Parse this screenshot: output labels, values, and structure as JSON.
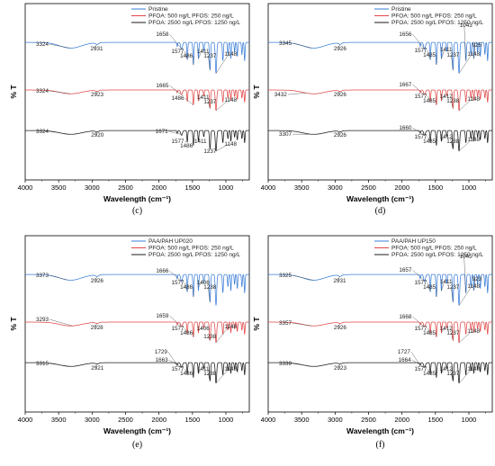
{
  "figure": {
    "xlabel": "Wavelength (cm⁻¹)",
    "ylabel": "% T",
    "xticks": [
      4000,
      3500,
      3000,
      2500,
      2000,
      1500,
      1000
    ],
    "xlim": [
      4000,
      650
    ],
    "colors": {
      "blue": "#3a7dd8",
      "red": "#e04848",
      "black": "#1a1a1a"
    }
  },
  "chart_data": [
    {
      "type": "line",
      "panel": "top-left",
      "caption": "(c)",
      "series": [
        {
          "name": "Pristine",
          "color": "blue",
          "labels": [
            {
              "x": 3324,
              "text": "3324",
              "lx": 3745,
              "ly": 4
            },
            {
              "x": 2931,
              "text": "2931",
              "lx": 2931,
              "ly": 9
            },
            {
              "x": 1658,
              "text": "1658",
              "lx": 1950,
              "ly": -7
            },
            {
              "x": 1577,
              "text": "1577",
              "lx": 1720,
              "ly": 12
            },
            {
              "x": 1486,
              "text": "1486",
              "lx": 1590,
              "ly": 17
            },
            {
              "x": 1411,
              "text": "1411",
              "lx": 1340,
              "ly": 12
            },
            {
              "x": 1237,
              "text": "1237",
              "lx": 1237,
              "ly": 17
            },
            {
              "x": 1148,
              "text": "1148",
              "lx": 930,
              "ly": 15
            }
          ]
        },
        {
          "name": "PFOA: 500 ng/L PFOS: 250 ng/L",
          "color": "red",
          "labels": [
            {
              "x": 3324,
              "text": "3324",
              "lx": 3745,
              "ly": 3
            },
            {
              "x": 2923,
              "text": "2923",
              "lx": 2923,
              "ly": 7
            },
            {
              "x": 1665,
              "text": "1665",
              "lx": 1950,
              "ly": -3
            },
            {
              "x": 1486,
              "text": "1486",
              "lx": 1720,
              "ly": 11
            },
            {
              "x": 1411,
              "text": "1411",
              "lx": 1340,
              "ly": 10
            },
            {
              "x": 1237,
              "text": "1237",
              "lx": 1237,
              "ly": 15
            },
            {
              "x": 1148,
              "text": "1148",
              "lx": 930,
              "ly": 13
            }
          ]
        },
        {
          "name": "PFOA: 2500 ng/L PFOS: 1250 ng/L",
          "color": "black",
          "labels": [
            {
              "x": 3324,
              "text": "3324",
              "lx": 3745,
              "ly": 3
            },
            {
              "x": 2920,
              "text": "2920",
              "lx": 2920,
              "ly": 7
            },
            {
              "x": 1671,
              "text": "1671",
              "lx": 1960,
              "ly": 3
            },
            {
              "x": 1577,
              "text": "1577",
              "lx": 1720,
              "ly": 14
            },
            {
              "x": 1486,
              "text": "1486",
              "lx": 1590,
              "ly": 19
            },
            {
              "x": 1411,
              "text": "1411",
              "lx": 1380,
              "ly": 14
            },
            {
              "x": 1237,
              "text": "1237",
              "lx": 1237,
              "ly": 25
            },
            {
              "x": 1148,
              "text": "1148",
              "lx": 930,
              "ly": 17
            }
          ]
        }
      ]
    },
    {
      "type": "line",
      "panel": "top-right",
      "caption": "(d)",
      "series": [
        {
          "name": "Pristine",
          "color": "blue",
          "labels": [
            {
              "x": 3345,
              "text": "3345",
              "lx": 3745,
              "ly": 3
            },
            {
              "x": 2926,
              "text": "2926",
              "lx": 2926,
              "ly": 9
            },
            {
              "x": 1656,
              "text": "1656",
              "lx": 1950,
              "ly": -7
            },
            {
              "x": 1577,
              "text": "1577",
              "lx": 1720,
              "ly": 11
            },
            {
              "x": 1485,
              "text": "1485",
              "lx": 1590,
              "ly": 16
            },
            {
              "x": 1411,
              "text": "1411",
              "lx": 1340,
              "ly": 10
            },
            {
              "x": 1237,
              "text": "1237",
              "lx": 1237,
              "ly": 16
            },
            {
              "x": 1043,
              "text": "1043",
              "lx": 1043,
              "ly": -17
            },
            {
              "x": 925,
              "text": "925",
              "lx": 880,
              "ly": 5
            },
            {
              "x": 1148,
              "text": "1148",
              "lx": 930,
              "ly": 15
            }
          ]
        },
        {
          "name": "PFOA: 500 ng/L PFOS: 250 ng/L",
          "color": "red",
          "labels": [
            {
              "x": 3432,
              "text": "3432",
              "lx": 3815,
              "ly": 7
            },
            {
              "x": 2926,
              "text": "2926",
              "lx": 2926,
              "ly": 7
            },
            {
              "x": 1667,
              "text": "1667",
              "lx": 1950,
              "ly": -4
            },
            {
              "x": 1577,
              "text": "1577",
              "lx": 1720,
              "ly": 9
            },
            {
              "x": 1485,
              "text": "1485",
              "lx": 1590,
              "ly": 14
            },
            {
              "x": 1412,
              "text": "1412",
              "lx": 1340,
              "ly": 9
            },
            {
              "x": 1238,
              "text": "1238",
              "lx": 1238,
              "ly": 14
            },
            {
              "x": 1148,
              "text": "1148",
              "lx": 930,
              "ly": 12
            }
          ]
        },
        {
          "name": "PFOA: 2500 ng/L PFOS: 1250 ng/L",
          "color": "black",
          "labels": [
            {
              "x": 3307,
              "text": "3307",
              "lx": 3745,
              "ly": 6
            },
            {
              "x": 2926,
              "text": "2926",
              "lx": 2926,
              "ly": 7
            },
            {
              "x": 1660,
              "text": "1660",
              "lx": 1950,
              "ly": -1
            },
            {
              "x": 1577,
              "text": "1577",
              "lx": 1720,
              "ly": 9
            },
            {
              "x": 1485,
              "text": "1485",
              "lx": 1590,
              "ly": 14
            },
            {
              "x": 1412,
              "text": "1412",
              "lx": 1340,
              "ly": 9
            },
            {
              "x": 1238,
              "text": "1238",
              "lx": 1238,
              "ly": 14
            },
            {
              "x": 1148,
              "text": "1148",
              "lx": 930,
              "ly": 12
            }
          ]
        }
      ]
    },
    {
      "type": "line",
      "panel": "bottom-left",
      "caption": "(e)",
      "series": [
        {
          "name": "PAA/PAH UP020",
          "color": "blue",
          "labels": [
            {
              "x": 3373,
              "text": "3373",
              "lx": 3745,
              "ly": 3
            },
            {
              "x": 2926,
              "text": "2926",
              "lx": 2926,
              "ly": 9
            },
            {
              "x": 1666,
              "text": "1666",
              "lx": 1950,
              "ly": -2
            },
            {
              "x": 1577,
              "text": "1577",
              "lx": 1720,
              "ly": 11
            },
            {
              "x": 1486,
              "text": "1486",
              "lx": 1590,
              "ly": 16
            },
            {
              "x": 1406,
              "text": "1406",
              "lx": 1340,
              "ly": 11
            },
            {
              "x": 1238,
              "text": "1238",
              "lx": 1238,
              "ly": 16
            }
          ]
        },
        {
          "name": "PFOA: 500 ng/L PFOS: 250 ng/L",
          "color": "red",
          "labels": [
            {
              "x": 3293,
              "text": "3293",
              "lx": 3745,
              "ly": -1
            },
            {
              "x": 2928,
              "text": "2928",
              "lx": 2928,
              "ly": 8
            },
            {
              "x": 1659,
              "text": "1659",
              "lx": 1950,
              "ly": -5
            },
            {
              "x": 1577,
              "text": "1577",
              "lx": 1720,
              "ly": 9
            },
            {
              "x": 1486,
              "text": "1486",
              "lx": 1590,
              "ly": 14
            },
            {
              "x": 1406,
              "text": "1406",
              "lx": 1340,
              "ly": 9
            },
            {
              "x": 1238,
              "text": "1238",
              "lx": 1238,
              "ly": 18
            },
            {
              "x": 1148,
              "text": "1148",
              "lx": 930,
              "ly": 7
            }
          ]
        },
        {
          "name": "PFOA: 2500 ng/L PFOS: 1250 ng/L",
          "color": "black",
          "labels": [
            {
              "x": 3315,
              "text": "3315",
              "lx": 3745,
              "ly": 3
            },
            {
              "x": 2921,
              "text": "2921",
              "lx": 2921,
              "ly": 8
            },
            {
              "x": 1729,
              "text": "1729",
              "lx": 1970,
              "ly": -10
            },
            {
              "x": 1663,
              "text": "1663",
              "lx": 1960,
              "ly": -1
            },
            {
              "x": 1577,
              "text": "1577",
              "lx": 1720,
              "ly": 9
            },
            {
              "x": 1486,
              "text": "1486",
              "lx": 1590,
              "ly": 14
            },
            {
              "x": 1411,
              "text": "1411",
              "lx": 1340,
              "ly": 9
            },
            {
              "x": 1238,
              "text": "1238",
              "lx": 1238,
              "ly": 14
            },
            {
              "x": 1148,
              "text": "1148",
              "lx": 930,
              "ly": 9
            }
          ]
        }
      ]
    },
    {
      "type": "line",
      "panel": "bottom-right",
      "caption": "(f)",
      "series": [
        {
          "name": "PAA/PAH UP150",
          "color": "blue",
          "labels": [
            {
              "x": 3325,
              "text": "3325",
              "lx": 3745,
              "ly": 3
            },
            {
              "x": 2931,
              "text": "2931",
              "lx": 2931,
              "ly": 9
            },
            {
              "x": 1657,
              "text": "1657",
              "lx": 1950,
              "ly": -3
            },
            {
              "x": 1577,
              "text": "1577",
              "lx": 1720,
              "ly": 11
            },
            {
              "x": 1485,
              "text": "1485",
              "lx": 1590,
              "ly": 16
            },
            {
              "x": 1411,
              "text": "1411",
              "lx": 1340,
              "ly": 10
            },
            {
              "x": 1237,
              "text": "1237",
              "lx": 1237,
              "ly": 16
            },
            {
              "x": 1045,
              "text": "1045",
              "lx": 1045,
              "ly": -18
            },
            {
              "x": 923,
              "text": "923",
              "lx": 880,
              "ly": 7
            },
            {
              "x": 1148,
              "text": "1148",
              "lx": 930,
              "ly": 15
            }
          ]
        },
        {
          "name": "PFOA: 500 ng/L PFOS: 250 ng/L",
          "color": "red",
          "labels": [
            {
              "x": 3357,
              "text": "3357",
              "lx": 3745,
              "ly": 3
            },
            {
              "x": 2926,
              "text": "2926",
              "lx": 2926,
              "ly": 8
            },
            {
              "x": 1668,
              "text": "1668",
              "lx": 1950,
              "ly": -4
            },
            {
              "x": 1577,
              "text": "1577",
              "lx": 1720,
              "ly": 9
            },
            {
              "x": 1485,
              "text": "1485",
              "lx": 1590,
              "ly": 14
            },
            {
              "x": 1412,
              "text": "1412",
              "lx": 1340,
              "ly": 9
            },
            {
              "x": 1237,
              "text": "1237",
              "lx": 1237,
              "ly": 14
            },
            {
              "x": 1148,
              "text": "1148",
              "lx": 930,
              "ly": 12
            }
          ]
        },
        {
          "name": "PFOA: 2500 ng/L PFOS: 1250 ng/L",
          "color": "black",
          "labels": [
            {
              "x": 3339,
              "text": "3339",
              "lx": 3745,
              "ly": 3
            },
            {
              "x": 2923,
              "text": "2923",
              "lx": 2923,
              "ly": 8
            },
            {
              "x": 1727,
              "text": "1727",
              "lx": 1970,
              "ly": -10
            },
            {
              "x": 1664,
              "text": "1664",
              "lx": 1960,
              "ly": -1
            },
            {
              "x": 1577,
              "text": "1577",
              "lx": 1720,
              "ly": 9
            },
            {
              "x": 1485,
              "text": "1485",
              "lx": 1590,
              "ly": 14
            },
            {
              "x": 1412,
              "text": "1412",
              "lx": 1340,
              "ly": 9
            },
            {
              "x": 1237,
              "text": "1237",
              "lx": 1237,
              "ly": 14
            },
            {
              "x": 1148,
              "text": "1148",
              "lx": 930,
              "ly": 9
            }
          ]
        }
      ]
    }
  ]
}
